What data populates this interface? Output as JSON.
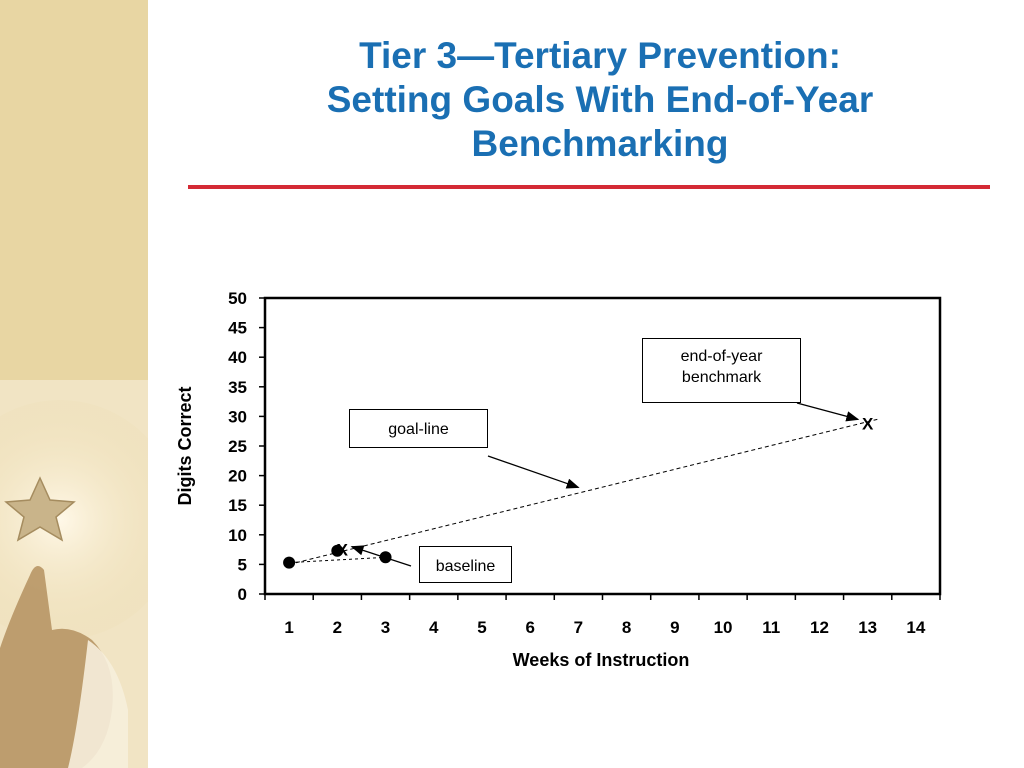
{
  "slide": {
    "title_lines": [
      "Tier 3—Tertiary Prevention:",
      "Setting Goals With End-of-Year",
      "Benchmarking"
    ],
    "colors": {
      "title": "#1a6fb3",
      "rule": "#d42a35",
      "side_panel": "#e8d6a3"
    },
    "decorative_image": "child-reaching-for-star"
  },
  "chart_data": {
    "type": "scatter",
    "xlabel": "Weeks of Instruction",
    "ylabel": "Digits Correct",
    "x_ticks": [
      1,
      2,
      3,
      4,
      5,
      6,
      7,
      8,
      9,
      10,
      11,
      12,
      13,
      14
    ],
    "y_ticks": [
      0,
      5,
      10,
      15,
      20,
      25,
      30,
      35,
      40,
      45,
      50
    ],
    "xlim": [
      0.5,
      14.5
    ],
    "ylim": [
      0,
      50
    ],
    "grid": false,
    "baseline_points": [
      {
        "x": 1,
        "y": 5.3
      },
      {
        "x": 2,
        "y": 7.3
      },
      {
        "x": 3,
        "y": 6.2
      }
    ],
    "baseline_marker": {
      "x": 2,
      "y": 7.5,
      "label": "X"
    },
    "benchmark_marker": {
      "x": 13,
      "y": 28.8,
      "label": "X"
    },
    "goal_line": {
      "x1": 1,
      "y1": 5,
      "x2": 13.2,
      "y2": 29.5
    },
    "baseline_trend": {
      "x1": 1,
      "y1": 5.3,
      "x2": 3,
      "y2": 6.2
    },
    "annotations": [
      {
        "id": "end-of-year-benchmark",
        "lines": [
          "end-of-year",
          "benchmark"
        ],
        "points_to": {
          "x": 12.8,
          "y": 29.5
        }
      },
      {
        "id": "goal-line",
        "lines": [
          "goal-line"
        ],
        "points_to": {
          "x": 7,
          "y": 18
        }
      },
      {
        "id": "baseline",
        "lines": [
          "baseline"
        ],
        "points_to": {
          "x": 2.3,
          "y": 8
        }
      }
    ]
  }
}
